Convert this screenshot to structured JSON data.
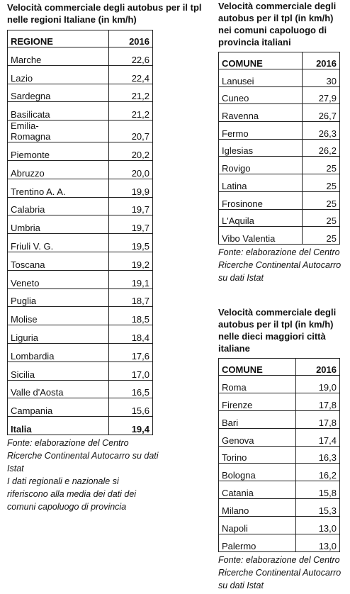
{
  "left": {
    "title": "Velocità commerciale degli autobus per il tpl nelle regioni Italiane (in km/h)",
    "table": {
      "header": [
        "REGIONE",
        "2016"
      ],
      "rows": [
        [
          "Marche",
          "22,6"
        ],
        [
          "Lazio",
          "22,4"
        ],
        [
          "Sardegna",
          "21,2"
        ],
        [
          "Basilicata",
          "21,2"
        ],
        [
          "Emilia-\nRomagna",
          "20,7"
        ],
        [
          "Piemonte",
          "20,2"
        ],
        [
          "Abruzzo",
          "20,0"
        ],
        [
          "Trentino A. A.",
          "19,9"
        ],
        [
          "Calabria",
          "19,7"
        ],
        [
          "Umbria",
          "19,7"
        ],
        [
          "Friuli V. G.",
          "19,5"
        ],
        [
          "Toscana",
          "19,2"
        ],
        [
          "Veneto",
          "19,1"
        ],
        [
          "Puglia",
          "18,7"
        ],
        [
          "Molise",
          "18,5"
        ],
        [
          "Liguria",
          "18,4"
        ],
        [
          "Lombardia",
          "17,6"
        ],
        [
          "Sicilia",
          "17,0"
        ],
        [
          "Valle d'Aosta",
          "16,5"
        ],
        [
          "Campania",
          "15,6"
        ]
      ],
      "total": [
        "Italia",
        "19,4"
      ]
    },
    "notes": [
      "Fonte: elaborazione del Centro Ricerche Continental Autocarro su dati Istat",
      "I dati regionali e nazionale si riferiscono alla media dei dati dei comuni capoluogo di provincia"
    ]
  },
  "right_top": {
    "title": "Velocità commerciale degli autobus per il tpl (in km/h) nei comuni capoluogo di provincia italiani",
    "table": {
      "header": [
        "COMUNE",
        "2016"
      ],
      "rows": [
        [
          "Lanusei",
          "30"
        ],
        [
          "Cuneo",
          "27,9"
        ],
        [
          "Ravenna",
          "26,7"
        ],
        [
          "Fermo",
          "26,3"
        ],
        [
          "Iglesias",
          "26,2"
        ],
        [
          "Rovigo",
          "25"
        ],
        [
          "Latina",
          "25"
        ],
        [
          "Frosinone",
          "25"
        ],
        [
          "L'Aquila",
          "25"
        ],
        [
          "Vibo Valentia",
          "25"
        ]
      ]
    },
    "notes": [
      "Fonte: elaborazione del Centro Ricerche Continental Autocarro su dati Istat"
    ]
  },
  "right_bottom": {
    "title": "Velocità commerciale degli autobus per il tpl (in km/h) nelle dieci maggiori città italiane",
    "table": {
      "header": [
        "COMUNE",
        "2016"
      ],
      "rows": [
        [
          "Roma",
          "19,0"
        ],
        [
          "Firenze",
          "17,8"
        ],
        [
          "Bari",
          "17,8"
        ],
        [
          "Genova",
          "17,4"
        ],
        [
          "Torino",
          "16,3"
        ],
        [
          "Bologna",
          "16,2"
        ],
        [
          "Catania",
          "15,8"
        ],
        [
          "Milano",
          "15,3"
        ],
        [
          "Napoli",
          "13,0"
        ],
        [
          "Palermo",
          "13,0"
        ]
      ]
    },
    "notes": [
      "Fonte: elaborazione del Centro Ricerche Continental Autocarro su dati Istat"
    ]
  }
}
